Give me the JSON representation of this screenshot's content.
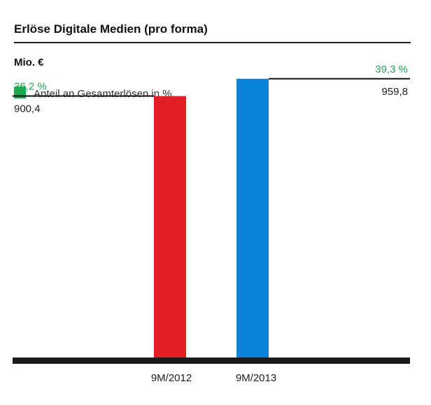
{
  "chart_data": {
    "type": "bar",
    "title": "Erlöse Digitale Medien (pro forma)",
    "unit_label": "Mio. €",
    "legend": {
      "label": "Anteil an Gesamterlösen in %",
      "color": "#1fa84f"
    },
    "categories": [
      "9M/2012",
      "9M/2013"
    ],
    "values": [
      900.4,
      959.8
    ],
    "value_labels": [
      "900,4",
      "959,8"
    ],
    "share_labels": [
      "36,2 %",
      "39,3 %"
    ],
    "shares": [
      36.2,
      39.3
    ],
    "bar_colors": [
      "#e31e24",
      "#0a83d8"
    ],
    "ylim": [
      0,
      1000
    ]
  }
}
